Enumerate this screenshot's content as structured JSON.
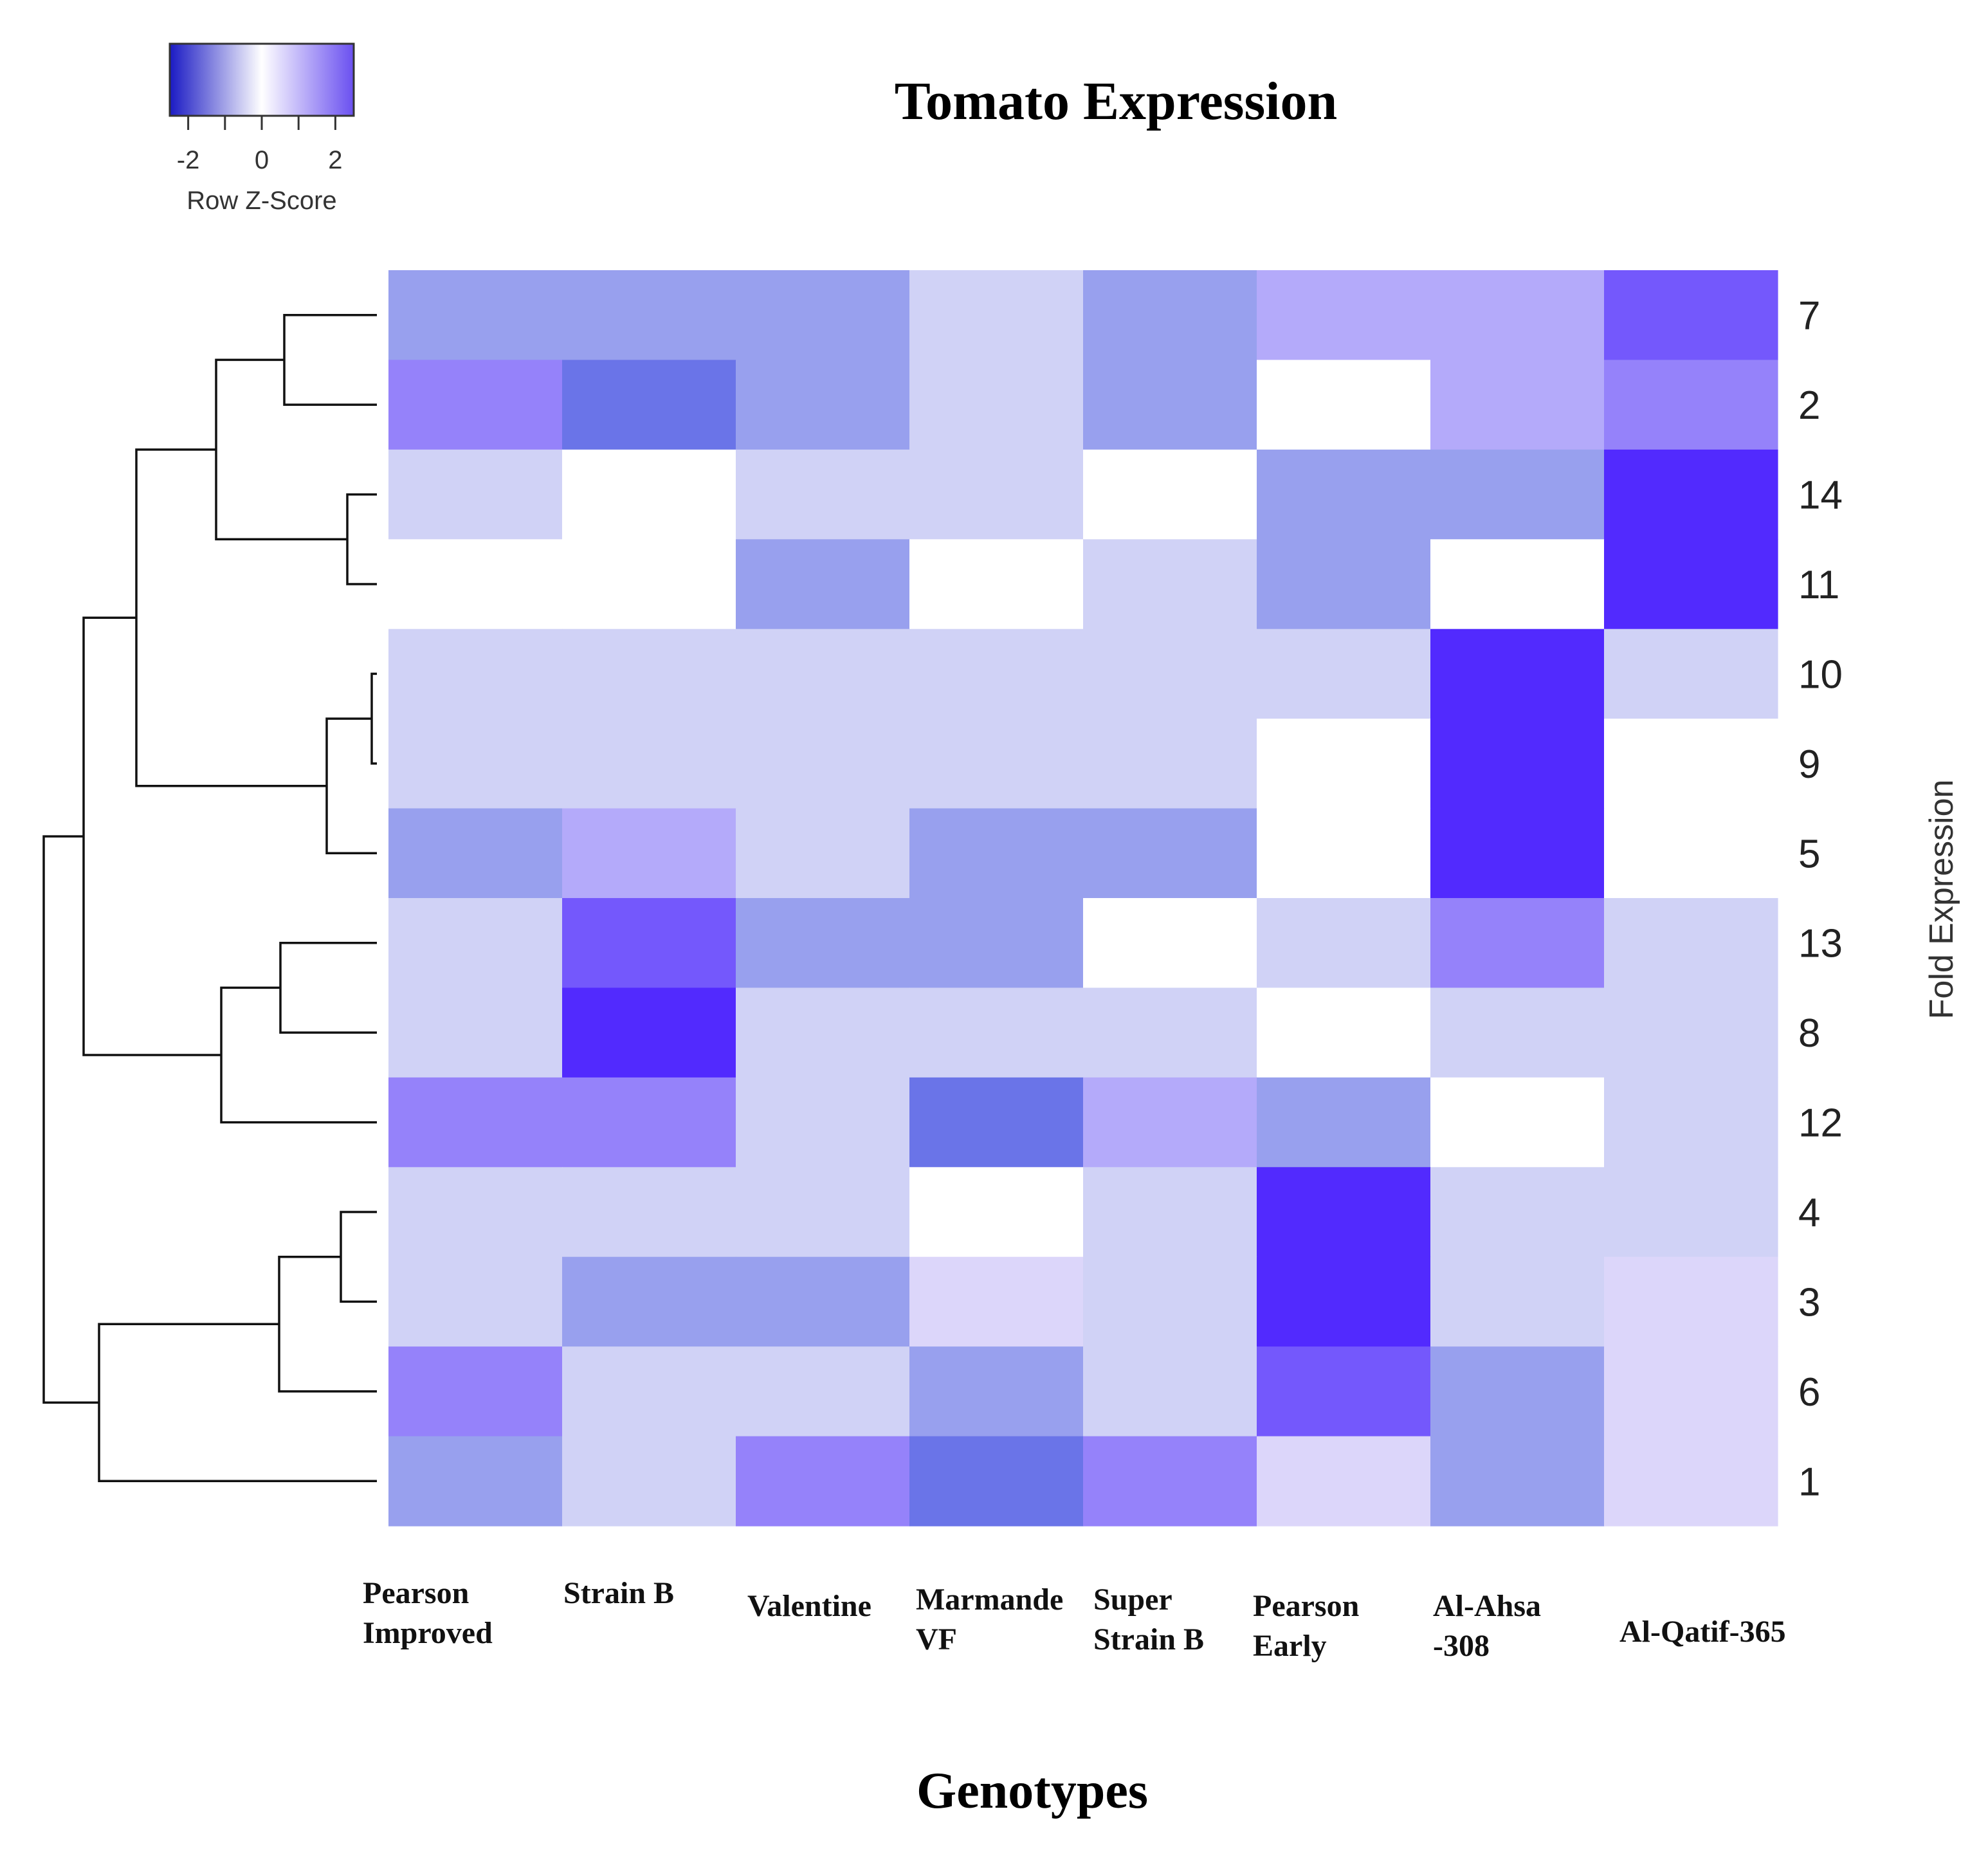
{
  "chart_data": {
    "type": "heatmap",
    "title": "Tomato Expression",
    "xlabel": "Genotypes",
    "ylabel": "Fold Expression",
    "columns": [
      [
        "Pearson",
        "Improved"
      ],
      [
        "Strain B"
      ],
      [
        "Valentine"
      ],
      [
        "Marmande",
        "VF"
      ],
      [
        "Super",
        "Strain B"
      ],
      [
        "Pearson",
        "Early"
      ],
      [
        "Al-Ahsa",
        "-308"
      ],
      [
        "Al-Qatif-365"
      ]
    ],
    "rows": [
      "7",
      "2",
      "14",
      "11",
      "10",
      "9",
      "5",
      "13",
      "8",
      "12",
      "4",
      "3",
      "6",
      "1"
    ],
    "values": [
      [
        -0.5,
        -0.5,
        -0.5,
        -0.15,
        -0.5,
        0.5,
        0.5,
        1.8
      ],
      [
        1.0,
        -1.1,
        -0.5,
        -0.15,
        -0.5,
        0.0,
        0.5,
        1.0
      ],
      [
        -0.15,
        0.0,
        -0.15,
        -0.15,
        0.0,
        -0.5,
        -0.5,
        2.6
      ],
      [
        0.0,
        0.0,
        -0.5,
        0.0,
        -0.15,
        -0.5,
        0.0,
        2.6
      ],
      [
        -0.15,
        -0.15,
        -0.15,
        -0.15,
        -0.15,
        -0.15,
        2.6,
        -0.15
      ],
      [
        -0.15,
        -0.15,
        -0.15,
        -0.15,
        -0.15,
        0.0,
        2.6,
        0.0
      ],
      [
        -0.5,
        0.5,
        -0.15,
        -0.5,
        -0.5,
        0.0,
        2.6,
        0.0
      ],
      [
        -0.15,
        1.8,
        -0.5,
        -0.5,
        0.0,
        -0.15,
        1.0,
        -0.15
      ],
      [
        -0.15,
        2.6,
        -0.15,
        -0.15,
        -0.15,
        0.0,
        -0.15,
        -0.15
      ],
      [
        1.0,
        1.0,
        -0.15,
        -1.1,
        0.5,
        -0.5,
        0.0,
        -0.15
      ],
      [
        -0.15,
        -0.15,
        -0.15,
        0.0,
        -0.15,
        2.6,
        -0.15,
        -0.15
      ],
      [
        -0.15,
        -0.5,
        -0.5,
        0.15,
        -0.15,
        2.6,
        -0.15,
        0.15
      ],
      [
        1.0,
        -0.15,
        -0.15,
        -0.5,
        -0.15,
        1.8,
        -0.5,
        0.15
      ],
      [
        -0.5,
        -0.15,
        1.0,
        -1.1,
        1.0,
        0.15,
        -0.5,
        0.15
      ]
    ],
    "color_key": {
      "label": "Row Z-Score",
      "ticks": [
        "-2",
        "0",
        "2"
      ],
      "range": [
        -2.5,
        2.5
      ],
      "colors": [
        "#1e1ec8",
        "#ffffff",
        "#6a50f0"
      ]
    },
    "cell_colors": {
      "-1.1": "#6a74e8",
      "-0.5": "#98a0ee",
      "-0.15": "#d0d2f6",
      "0": "#ffffff",
      "0.15": "#dcd6fa",
      "0.5": "#b4aafa",
      "1": "#9582fa",
      "1.8": "#7458fc",
      "2.6": "#522afe"
    },
    "dendrogram": {
      "placement": "left",
      "clusters": [
        [
          "7",
          "2"
        ],
        [
          "14",
          "11"
        ],
        [
          "7",
          "2",
          "14",
          "11"
        ],
        [
          "10",
          "9"
        ],
        [
          "10",
          "9",
          "5"
        ],
        [
          "7",
          "2",
          "14",
          "11",
          "10",
          "9",
          "5"
        ],
        [
          "13",
          "8"
        ],
        [
          "13",
          "8",
          "12"
        ],
        [
          "7",
          "2",
          "14",
          "11",
          "10",
          "9",
          "5",
          "13",
          "8",
          "12"
        ],
        [
          "4",
          "3"
        ],
        [
          "4",
          "3",
          "6"
        ],
        [
          "4",
          "3",
          "6",
          "1"
        ],
        [
          "7",
          "2",
          "14",
          "11",
          "10",
          "9",
          "5",
          "13",
          "8",
          "12",
          "4",
          "3",
          "6",
          "1"
        ]
      ]
    }
  }
}
